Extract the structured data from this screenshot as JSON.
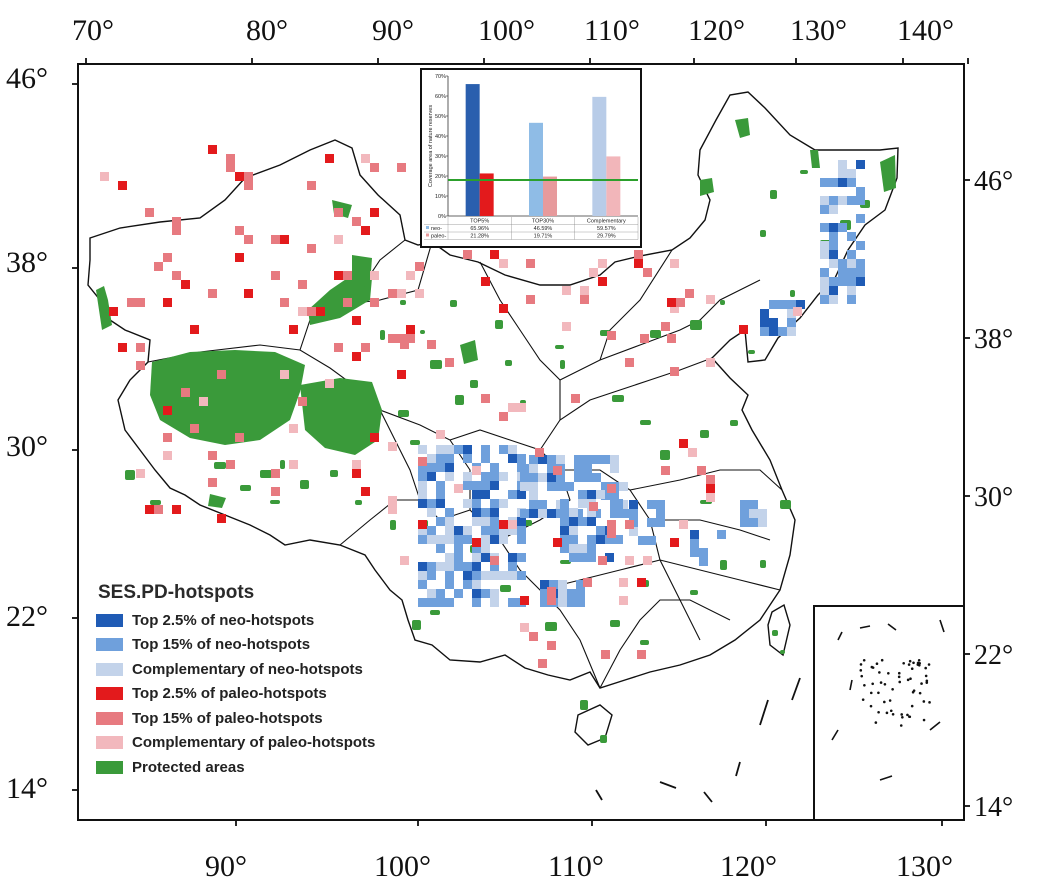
{
  "top_axis_labels": [
    "70°",
    "80°",
    "90°",
    "100°",
    "110°",
    "120°",
    "130°",
    "140°"
  ],
  "bottom_axis_labels": [
    "90°",
    "100°",
    "110°",
    "120°",
    "130°"
  ],
  "left_axis_labels": [
    "46°",
    "38°",
    "30°",
    "22°",
    "14°"
  ],
  "right_axis_labels": [
    "46°",
    "38°",
    "30°",
    "22°",
    "14°"
  ],
  "legend": {
    "title": "SES.PD-hotspots",
    "items": [
      {
        "label": "Top 2.5% of neo-hotspots",
        "color": "#1f5bb5"
      },
      {
        "label": "Top 15% of neo-hotspots",
        "color": "#6fa0dc"
      },
      {
        "label": "Complementary of neo-hotspots",
        "color": "#c3d3ea"
      },
      {
        "label": "Top 2.5% of paleo-hotspots",
        "color": "#e31a1c"
      },
      {
        "label": "Top 15% of paleo-hotspots",
        "color": "#e77a80"
      },
      {
        "label": "Complementary of paleo-hotspots",
        "color": "#f2b8bd"
      },
      {
        "label": "Protected areas",
        "color": "#3a9a3a"
      }
    ]
  },
  "colors": {
    "protected": "#3a9a3a",
    "neo_top": "#1f5bb5",
    "neo_15": "#6fa0dc",
    "neo_comp": "#c3d3ea",
    "paleo_top": "#e31a1c",
    "paleo_15": "#e77a80",
    "paleo_comp": "#f2b8bd",
    "reference_line": "#2ca02c"
  },
  "chart_data": {
    "type": "bar",
    "ylabel": "Coverage area of nature reserves",
    "categories": [
      "TOP5%",
      "TOP30%",
      "Complementary"
    ],
    "series": [
      {
        "name": "neo-",
        "values": [
          65.96,
          46.59,
          59.57
        ],
        "labels": [
          "65.96%",
          "46.59%",
          "59.57%"
        ]
      },
      {
        "name": "paleo-",
        "values": [
          21.28,
          19.71,
          29.79
        ],
        "labels": [
          "21.28%",
          "19.71%",
          "29.79%"
        ]
      }
    ],
    "ylim": [
      0,
      70
    ],
    "yticks": [
      "0%",
      "10%",
      "20%",
      "30%",
      "40%",
      "50%",
      "60%",
      "70%"
    ],
    "reference_line": 18,
    "bar_colors": {
      "neo-": [
        "#2a5fae",
        "#8fbce6",
        "#b8cce8"
      ],
      "paleo-": [
        "#e31a1c",
        "#e79a9c",
        "#f2b6ba"
      ]
    }
  }
}
